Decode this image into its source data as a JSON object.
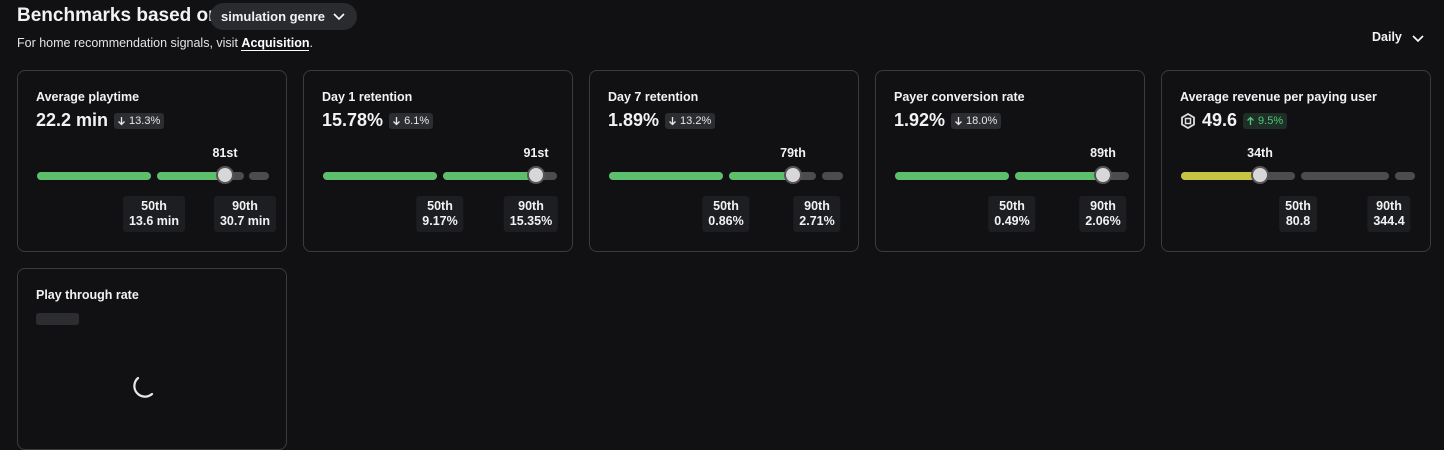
{
  "header": {
    "title": "Benchmarks based on",
    "genre": "simulation genre",
    "subtitle": "For home recommendation signals, visit",
    "link": "Acquisition",
    "subtitle_end": ".",
    "period": "Daily"
  },
  "metrics": [
    {
      "name": "Average playtime",
      "value": "22.2 min",
      "change": "13.3%",
      "direction": "down",
      "percentile": "81st",
      "color": "#5dbf6c",
      "p50": {
        "label": "50th",
        "value": "13.6 min"
      },
      "p90": {
        "label": "90th",
        "value": "30.7 min"
      }
    },
    {
      "name": "Day 1 retention",
      "value": "15.78%",
      "change": "6.1%",
      "direction": "down",
      "percentile": "91st",
      "color": "#5dbf6c",
      "p50": {
        "label": "50th",
        "value": "9.17%"
      },
      "p90": {
        "label": "90th",
        "value": "15.35%"
      }
    },
    {
      "name": "Day 7 retention",
      "value": "1.89%",
      "change": "13.2%",
      "direction": "down",
      "percentile": "79th",
      "color": "#5dbf6c",
      "p50": {
        "label": "50th",
        "value": "0.86%"
      },
      "p90": {
        "label": "90th",
        "value": "2.71%"
      }
    },
    {
      "name": "Payer conversion rate",
      "value": "1.92%",
      "change": "18.0%",
      "direction": "down",
      "percentile": "89th",
      "color": "#5dbf6c",
      "p50": {
        "label": "50th",
        "value": "0.49%"
      },
      "p90": {
        "label": "90th",
        "value": "2.06%"
      }
    },
    {
      "name": "Average revenue per paying user",
      "value": "49.6",
      "currency_icon": true,
      "change": "9.5%",
      "direction": "up",
      "percentile": "34th",
      "color": "#c8c443",
      "p50": {
        "label": "50th",
        "value": "80.8"
      },
      "p90": {
        "label": "90th",
        "value": "344.4"
      }
    }
  ],
  "loading_card": {
    "name": "Play through rate"
  }
}
